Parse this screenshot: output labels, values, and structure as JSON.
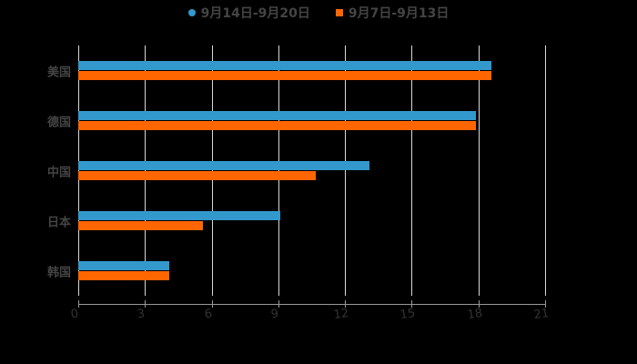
{
  "chart_data": {
    "type": "bar",
    "orientation": "horizontal",
    "title": "",
    "categories": [
      "美国",
      "德国",
      "中国",
      "日本",
      "韩国"
    ],
    "series": [
      {
        "name": "9月14日-9月20日",
        "color": "#3399cc",
        "values": [
          18.6,
          17.9,
          13.1,
          9.1,
          4.1
        ]
      },
      {
        "name": "9月7日-9月13日",
        "color": "#ff6600",
        "values": [
          18.6,
          17.9,
          10.7,
          5.6,
          4.1
        ]
      }
    ],
    "xlabel": "",
    "ylabel": "",
    "xlim": [
      0,
      21
    ],
    "x_ticks": [
      "0",
      "3",
      "6",
      "9",
      "12",
      "15",
      "18",
      "21"
    ],
    "grid": true,
    "legend_position": "top"
  },
  "legend": {
    "items": [
      {
        "label": "9月14日-9月20日",
        "color": "#3399cc",
        "marker": "circle"
      },
      {
        "label": "9月7日-9月13日",
        "color": "#ff6600",
        "marker": "square"
      }
    ]
  }
}
